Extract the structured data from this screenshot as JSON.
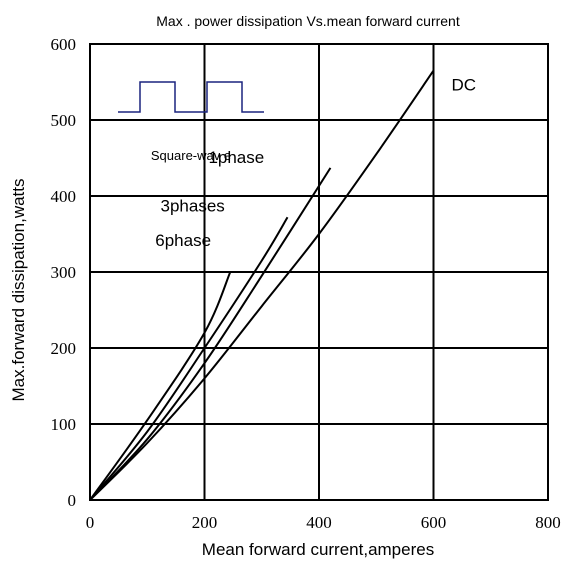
{
  "chart_data": {
    "type": "line",
    "title": "Max . power dissipation Vs.mean forward current",
    "xlabel": "Mean  forward current,amperes",
    "ylabel": "Max.forward dissipation,watts",
    "xlim": [
      0,
      800
    ],
    "ylim": [
      0,
      600
    ],
    "x_ticks": [
      "0",
      "200",
      "400",
      "600",
      "800"
    ],
    "y_ticks": [
      "0",
      "100",
      "200",
      "300",
      "400",
      "500",
      "600"
    ],
    "grid": true,
    "inset": {
      "label": "Square-wav e",
      "icon": "square-wave-icon",
      "color": "#1a237e"
    },
    "series": [
      {
        "name": "DC",
        "x": [
          0,
          100,
          200,
          300,
          400,
          500,
          600
        ],
        "y": [
          0,
          75,
          160,
          255,
          350,
          455,
          565
        ]
      },
      {
        "name": "1phase",
        "x": [
          0,
          100,
          200,
          300,
          420
        ],
        "y": [
          0,
          80,
          180,
          295,
          437
        ]
      },
      {
        "name": "3phases",
        "x": [
          0,
          100,
          200,
          300,
          345
        ],
        "y": [
          0,
          90,
          200,
          315,
          372
        ]
      },
      {
        "name": "6phase",
        "x": [
          0,
          100,
          200,
          245
        ],
        "y": [
          0,
          105,
          220,
          300
        ]
      }
    ]
  }
}
